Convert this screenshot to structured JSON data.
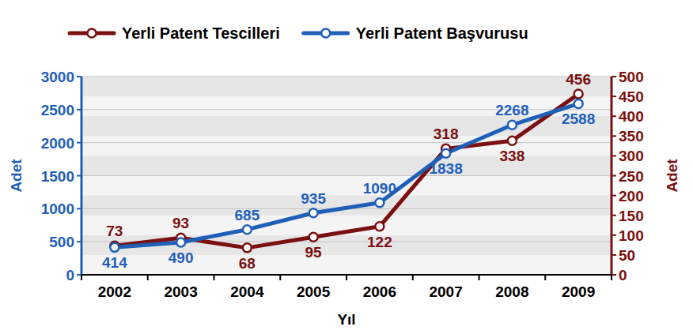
{
  "chart_data": {
    "type": "line",
    "categories": [
      "2002",
      "2003",
      "2004",
      "2005",
      "2006",
      "2007",
      "2008",
      "2009"
    ],
    "x_label": "Yıl",
    "y_label": "Adet",
    "y2_label": "Adet",
    "ylim": [
      0,
      3000
    ],
    "yticks": [
      0,
      500,
      1000,
      1500,
      2000,
      2500,
      3000
    ],
    "y2lim": [
      0,
      500
    ],
    "y2ticks": [
      0,
      50,
      100,
      150,
      200,
      250,
      300,
      350,
      400,
      450,
      500
    ],
    "grid": true,
    "legend": "top",
    "data_labels": true,
    "series": [
      {
        "name": "Yerli Patent Tescilleri",
        "color": "#7a1010",
        "axis": "y2",
        "marker": "circle",
        "values": [
          73,
          93,
          68,
          95,
          122,
          318,
          338,
          456
        ]
      },
      {
        "name": "Yerli Patent Başvurusu",
        "color": "#1f5fb8",
        "axis": "y",
        "marker": "circle",
        "values": [
          414,
          490,
          685,
          935,
          1090,
          1838,
          2268,
          2588
        ]
      }
    ]
  }
}
